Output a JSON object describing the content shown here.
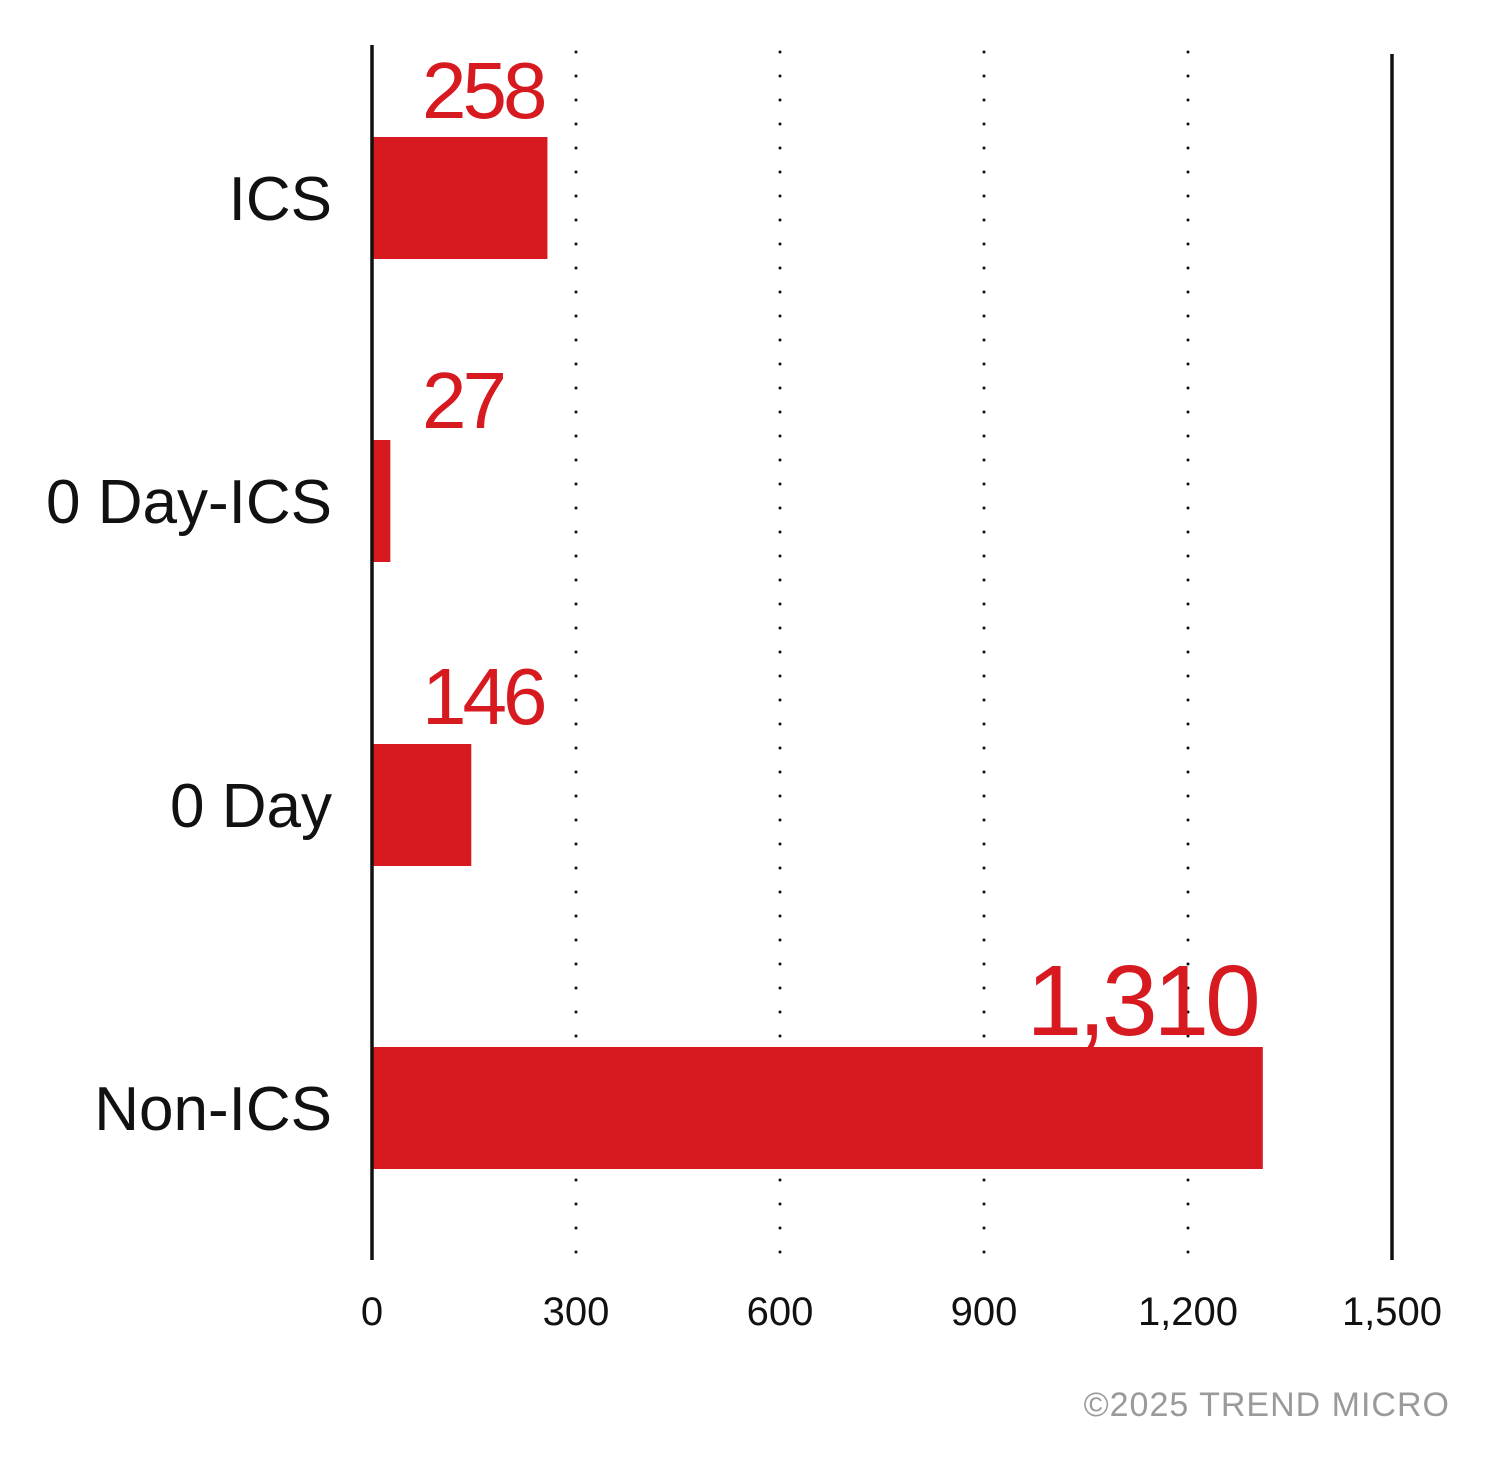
{
  "chart_data": {
    "type": "bar",
    "orientation": "horizontal",
    "categories": [
      "ICS",
      "0 Day-ICS",
      "0 Day",
      "Non-ICS"
    ],
    "values": [
      258,
      27,
      146,
      1310
    ],
    "value_labels": [
      "258",
      "27",
      "146",
      "1,310"
    ],
    "title": "",
    "xlabel": "",
    "ylabel": "",
    "xlim": [
      0,
      1500
    ],
    "x_ticks": [
      0,
      300,
      600,
      900,
      1200,
      1500
    ],
    "x_tick_labels": [
      "0",
      "300",
      "600",
      "900",
      "1,200",
      "1,500"
    ],
    "grid": "vertical dotted",
    "legend": "none"
  },
  "colors": {
    "bar": "#d71920",
    "value_label": "#d71920",
    "text": "#111111",
    "axis": "#111111",
    "copyright": "#9a9a9a"
  },
  "footer": {
    "copyright": "©2025 TREND MICRO"
  }
}
